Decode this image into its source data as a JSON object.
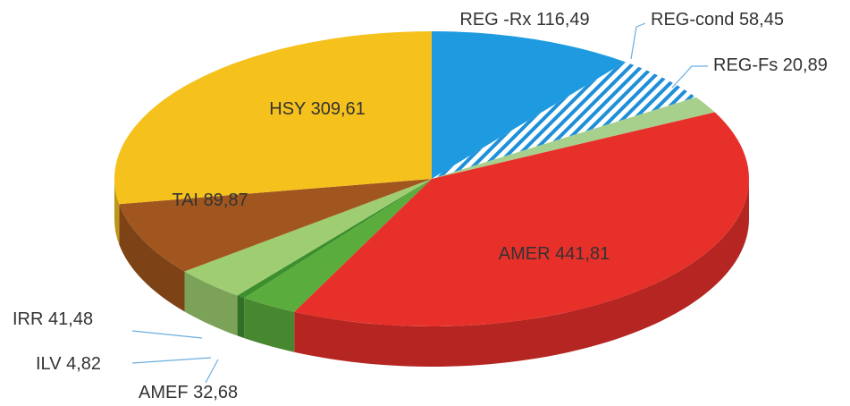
{
  "chart_data": {
    "type": "pie",
    "categories": [
      "REG -Rx",
      "REG-cond",
      "REG-Fs",
      "AMER",
      "AMEF",
      "ILV",
      "IRR",
      "TAI",
      "HSY"
    ],
    "values": [
      116.49,
      58.45,
      20.89,
      441.81,
      32.68,
      4.82,
      41.48,
      89.87,
      309.61
    ],
    "value_labels": [
      "116,49",
      "58,45",
      "20,89",
      "441,81",
      "32,68",
      "4,82",
      "41,48",
      "89,87",
      "309,61"
    ],
    "colors": [
      "#1e9be0",
      "#1e8fd8",
      "#a8d08d",
      "#e8302a",
      "#5aad3c",
      "#3d8f2e",
      "#9fce72",
      "#a0561e",
      "#f5c11c"
    ],
    "hatched": [
      1
    ]
  }
}
